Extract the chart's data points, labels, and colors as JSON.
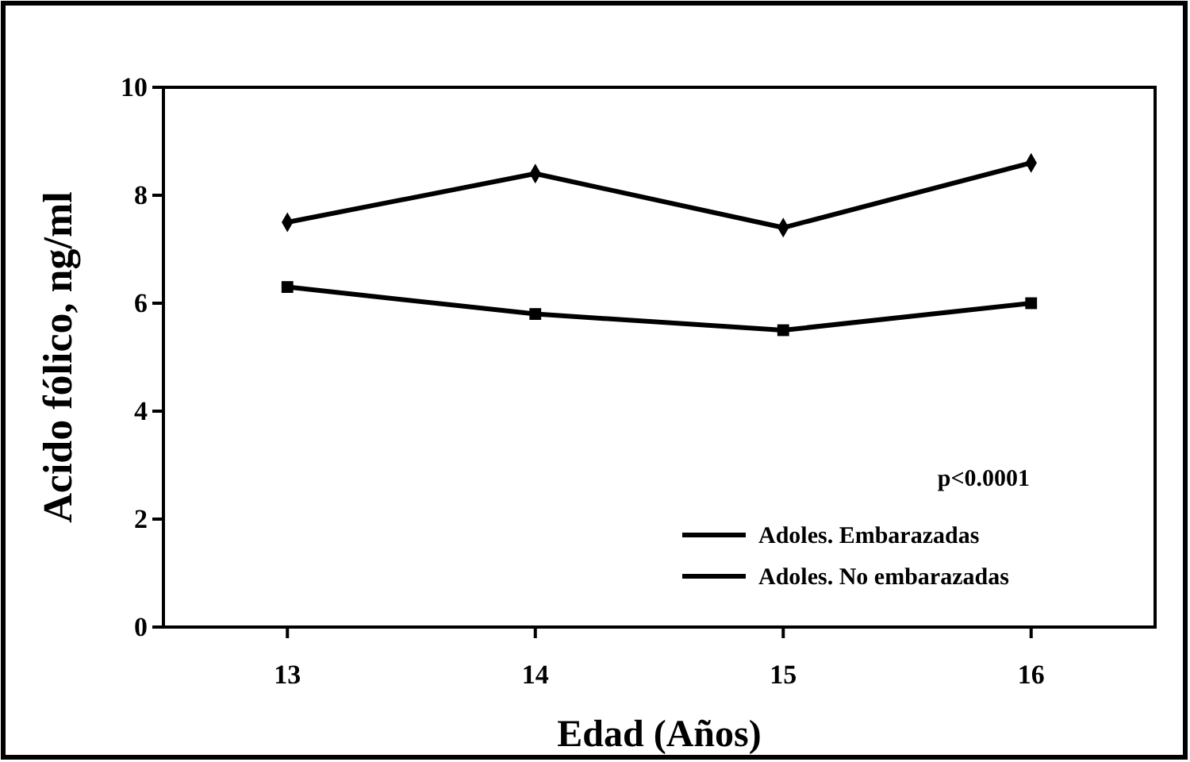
{
  "chart_data": {
    "type": "line",
    "xlabel": "Edad (Años)",
    "ylabel": "Acido fólico, ng/ml",
    "categories": [
      "13",
      "14",
      "15",
      "16"
    ],
    "series": [
      {
        "name": "Adoles. Embarazadas",
        "color": "#000000",
        "marker": "square",
        "values": [
          6.3,
          5.8,
          5.5,
          6.0
        ]
      },
      {
        "name": "Adoles. No embarazadas",
        "color": "#000000",
        "marker": "diamond",
        "values": [
          7.5,
          8.4,
          7.4,
          8.6
        ]
      }
    ],
    "ylim": [
      0,
      10
    ],
    "yticks": [
      0,
      2,
      4,
      6,
      8,
      10
    ],
    "grid": false,
    "legend": "bottom right",
    "line_style": "solid",
    "annotations": [
      "p<0.0001"
    ]
  }
}
